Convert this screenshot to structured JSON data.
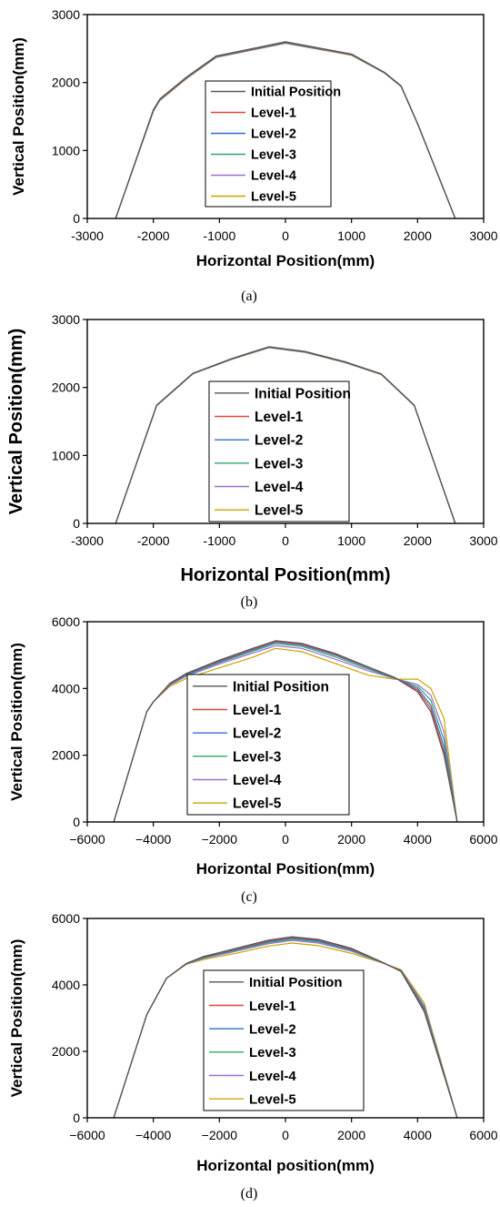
{
  "chart_data": [
    {
      "type": "line",
      "caption": "(a)",
      "xlabel": "Horizontal Position(mm)",
      "ylabel": "Vertical Position(mm)",
      "xlim": [
        -3000,
        3000
      ],
      "ylim": [
        0,
        3000
      ],
      "xticks": [
        "-3000",
        "-2000",
        "-1000",
        "0",
        "1000",
        "2000",
        "3000"
      ],
      "yticks": [
        "0",
        "1000",
        "2000",
        "3000"
      ],
      "xtick_values": [
        -3000,
        -2000,
        -1000,
        0,
        1000,
        2000,
        3000
      ],
      "ytick_values": [
        0,
        1000,
        2000,
        3000
      ],
      "legend_position": "center",
      "series": [
        {
          "name": "Initial Position",
          "color": "#555555",
          "x": [
            -2570,
            -2000,
            -1900,
            -1500,
            -1050,
            -500,
            0,
            500,
            1000,
            1500,
            1750,
            2000,
            2570
          ],
          "y": [
            0,
            1600,
            1760,
            2080,
            2390,
            2500,
            2600,
            2510,
            2420,
            2150,
            1950,
            1400,
            0
          ]
        },
        {
          "name": "Level-1",
          "color": "#e8423a",
          "x": [
            -2570,
            -2000,
            -1900,
            -1500,
            -1050,
            -500,
            0,
            500,
            1000,
            1500,
            1750,
            2000,
            2570
          ],
          "y": [
            0,
            1595,
            1755,
            2075,
            2385,
            2495,
            2595,
            2505,
            2415,
            2148,
            1948,
            1398,
            0
          ]
        },
        {
          "name": "Level-2",
          "color": "#2f6fc9",
          "x": [
            -2570,
            -2000,
            -1900,
            -1500,
            -1050,
            -500,
            0,
            500,
            1000,
            1500,
            1750,
            2000,
            2570
          ],
          "y": [
            0,
            1590,
            1750,
            2070,
            2380,
            2490,
            2590,
            2500,
            2412,
            2145,
            1946,
            1396,
            0
          ]
        },
        {
          "name": "Level-3",
          "color": "#2ea86a",
          "x": [
            -2570,
            -2000,
            -1900,
            -1500,
            -1050,
            -500,
            0,
            500,
            1000,
            1500,
            1750,
            2000,
            2570
          ],
          "y": [
            0,
            1585,
            1745,
            2065,
            2376,
            2486,
            2585,
            2496,
            2408,
            2142,
            1944,
            1394,
            0
          ]
        },
        {
          "name": "Level-4",
          "color": "#9b6fd6",
          "x": [
            -2570,
            -2000,
            -1900,
            -1500,
            -1050,
            -500,
            0,
            500,
            1000,
            1500,
            1750,
            2000,
            2570
          ],
          "y": [
            0,
            1580,
            1740,
            2060,
            2372,
            2482,
            2580,
            2492,
            2404,
            2140,
            1942,
            1392,
            0
          ]
        },
        {
          "name": "Level-5",
          "color": "#c9a400",
          "x": [
            -2570,
            -2000,
            -1900,
            -1500,
            -1050,
            -500,
            0,
            500,
            1000,
            1500,
            1750,
            2000,
            2570
          ],
          "y": [
            0,
            1575,
            1735,
            2055,
            2368,
            2478,
            2575,
            2488,
            2400,
            2138,
            1940,
            1390,
            0
          ]
        }
      ]
    },
    {
      "type": "line",
      "caption": "(b)",
      "xlabel": "Horizontal Position(mm)",
      "ylabel": "Vertical Position(mm)",
      "xlim": [
        -3000,
        3000
      ],
      "ylim": [
        0,
        3000
      ],
      "xticks": [
        "-3000",
        "-2000",
        "-1000",
        "0",
        "1000",
        "2000",
        "3000"
      ],
      "yticks": [
        "0",
        "1000",
        "2000",
        "3000"
      ],
      "xtick_values": [
        -3000,
        -2000,
        -1000,
        0,
        1000,
        2000,
        3000
      ],
      "ytick_values": [
        0,
        1000,
        2000,
        3000
      ],
      "legend_position": "center-right",
      "series": [
        {
          "name": "Initial Position",
          "color": "#555555",
          "x": [
            -2570,
            -1950,
            -1400,
            -800,
            -250,
            300,
            900,
            1450,
            1950,
            2570
          ],
          "y": [
            0,
            1740,
            2210,
            2430,
            2600,
            2530,
            2380,
            2200,
            1740,
            0
          ]
        },
        {
          "name": "Level-1",
          "color": "#e8423a",
          "x": [
            -2570,
            -1950,
            -1400,
            -800,
            -250,
            300,
            900,
            1450,
            1950,
            2570
          ],
          "y": [
            0,
            1738,
            2208,
            2428,
            2597,
            2527,
            2377,
            2198,
            1738,
            0
          ]
        },
        {
          "name": "Level-2",
          "color": "#2f6fc9",
          "x": [
            -2570,
            -1950,
            -1400,
            -800,
            -250,
            300,
            900,
            1450,
            1950,
            2570
          ],
          "y": [
            0,
            1736,
            2206,
            2425,
            2594,
            2524,
            2374,
            2196,
            1736,
            0
          ]
        },
        {
          "name": "Level-3",
          "color": "#2ea86a",
          "x": [
            -2570,
            -1950,
            -1400,
            -800,
            -250,
            300,
            900,
            1450,
            1950,
            2570
          ],
          "y": [
            0,
            1734,
            2204,
            2422,
            2591,
            2521,
            2371,
            2194,
            1734,
            0
          ]
        },
        {
          "name": "Level-4",
          "color": "#9b6fd6",
          "x": [
            -2570,
            -1950,
            -1400,
            -800,
            -250,
            300,
            900,
            1450,
            1950,
            2570
          ],
          "y": [
            0,
            1732,
            2202,
            2420,
            2588,
            2518,
            2368,
            2192,
            1732,
            0
          ]
        },
        {
          "name": "Level-5",
          "color": "#c9a400",
          "x": [
            -2570,
            -1950,
            -1400,
            -800,
            -250,
            300,
            900,
            1450,
            1950,
            2570
          ],
          "y": [
            0,
            1730,
            2200,
            2418,
            2585,
            2515,
            2365,
            2190,
            1730,
            0
          ]
        }
      ]
    },
    {
      "type": "line",
      "caption": "(c)",
      "xlabel": "Horizontal Position(mm)",
      "ylabel": "Vertical Position(mm)",
      "xlim": [
        -6000,
        6000
      ],
      "ylim": [
        0,
        6000
      ],
      "xticks": [
        "−6000",
        "−4000",
        "−2000",
        "0",
        "2000",
        "4000",
        "6000"
      ],
      "yticks": [
        "0",
        "2000",
        "4000",
        "6000"
      ],
      "xtick_values": [
        -6000,
        -4000,
        -2000,
        0,
        2000,
        4000,
        6000
      ],
      "ytick_values": [
        0,
        2000,
        4000,
        6000
      ],
      "legend_position": "center",
      "series": [
        {
          "name": "Initial Position",
          "color": "#555555",
          "x": [
            -5200,
            -4200,
            -4000,
            -3500,
            -3000,
            -2000,
            -1000,
            -300,
            500,
            1500,
            2500,
            3300,
            4000,
            4400,
            4800,
            5200
          ],
          "y": [
            0,
            3300,
            3600,
            4150,
            4450,
            4850,
            5200,
            5430,
            5350,
            5050,
            4650,
            4330,
            3900,
            3300,
            2000,
            0
          ]
        },
        {
          "name": "Level-1",
          "color": "#e8423a",
          "x": [
            -5200,
            -4200,
            -4000,
            -3500,
            -3000,
            -2000,
            -1000,
            -300,
            500,
            1500,
            2500,
            3300,
            4000,
            4400,
            4800,
            5200
          ],
          "y": [
            0,
            3300,
            3600,
            4140,
            4440,
            4830,
            5180,
            5410,
            5330,
            5030,
            4640,
            4330,
            3950,
            3400,
            2100,
            0
          ]
        },
        {
          "name": "Level-2",
          "color": "#2f6fc9",
          "x": [
            -5200,
            -4200,
            -4000,
            -3500,
            -3000,
            -2000,
            -1000,
            -300,
            500,
            1500,
            2500,
            3300,
            4000,
            4400,
            4800,
            5200
          ],
          "y": [
            0,
            3300,
            3600,
            4130,
            4420,
            4800,
            5150,
            5380,
            5300,
            5000,
            4620,
            4320,
            4000,
            3500,
            2250,
            0
          ]
        },
        {
          "name": "Level-3",
          "color": "#2ea86a",
          "x": [
            -5200,
            -4200,
            -4000,
            -3500,
            -3000,
            -2000,
            -1000,
            -300,
            500,
            1500,
            2500,
            3300,
            4000,
            4400,
            4800,
            5200
          ],
          "y": [
            0,
            3300,
            3600,
            4120,
            4400,
            4770,
            5110,
            5340,
            5260,
            4950,
            4580,
            4310,
            4060,
            3650,
            2450,
            0
          ]
        },
        {
          "name": "Level-4",
          "color": "#9b6fd6",
          "x": [
            -5200,
            -4200,
            -4000,
            -3500,
            -3000,
            -2000,
            -1000,
            -300,
            500,
            1500,
            2500,
            3300,
            4000,
            4400,
            4800,
            5200
          ],
          "y": [
            0,
            3300,
            3600,
            4100,
            4370,
            4730,
            5060,
            5280,
            5200,
            4880,
            4530,
            4300,
            4120,
            3800,
            2700,
            0
          ]
        },
        {
          "name": "Level-5",
          "color": "#c9a400",
          "x": [
            -5200,
            -4200,
            -4000,
            -3500,
            -3000,
            -2000,
            -1000,
            -300,
            500,
            1500,
            2500,
            3300,
            4000,
            4400,
            4800,
            5200
          ],
          "y": [
            0,
            3300,
            3600,
            4060,
            4300,
            4620,
            4930,
            5200,
            5100,
            4750,
            4400,
            4280,
            4280,
            4000,
            3100,
            0
          ]
        }
      ]
    },
    {
      "type": "line",
      "caption": "(d)",
      "xlabel": "Horizontal position(mm)",
      "ylabel": "Vertical Position(mm)",
      "xlim": [
        -6000,
        6000
      ],
      "ylim": [
        0,
        6000
      ],
      "xticks": [
        "−6000",
        "−4000",
        "−2000",
        "0",
        "2000",
        "4000",
        "6000"
      ],
      "yticks": [
        "0",
        "2000",
        "4000",
        "6000"
      ],
      "xtick_values": [
        -6000,
        -4000,
        -2000,
        0,
        2000,
        4000,
        6000
      ],
      "ytick_values": [
        0,
        2000,
        4000,
        6000
      ],
      "legend_position": "center-right",
      "series": [
        {
          "name": "Initial Position",
          "color": "#555555",
          "x": [
            -5200,
            -4200,
            -3600,
            -3000,
            -2500,
            -1500,
            -500,
            200,
            1000,
            2000,
            2900,
            3500,
            4200,
            5200
          ],
          "y": [
            0,
            3100,
            4200,
            4650,
            4850,
            5100,
            5350,
            5450,
            5370,
            5100,
            4700,
            4400,
            3200,
            0
          ]
        },
        {
          "name": "Level-1",
          "color": "#e8423a",
          "x": [
            -5200,
            -4200,
            -3600,
            -3000,
            -2500,
            -1500,
            -500,
            200,
            1000,
            2000,
            2900,
            3500,
            4200,
            5200
          ],
          "y": [
            0,
            3100,
            4200,
            4645,
            4840,
            5085,
            5330,
            5430,
            5350,
            5085,
            4695,
            4410,
            3230,
            0
          ]
        },
        {
          "name": "Level-2",
          "color": "#2f6fc9",
          "x": [
            -5200,
            -4200,
            -3600,
            -3000,
            -2500,
            -1500,
            -500,
            200,
            1000,
            2000,
            2900,
            3500,
            4200,
            5200
          ],
          "y": [
            0,
            3100,
            4200,
            4640,
            4825,
            5065,
            5305,
            5405,
            5325,
            5065,
            4690,
            4420,
            3270,
            0
          ]
        },
        {
          "name": "Level-3",
          "color": "#2ea86a",
          "x": [
            -5200,
            -4200,
            -3600,
            -3000,
            -2500,
            -1500,
            -500,
            200,
            1000,
            2000,
            2900,
            3500,
            4200,
            5200
          ],
          "y": [
            0,
            3100,
            4200,
            4635,
            4810,
            5040,
            5275,
            5375,
            5295,
            5040,
            4685,
            4430,
            3320,
            0
          ]
        },
        {
          "name": "Level-4",
          "color": "#9b6fd6",
          "x": [
            -5200,
            -4200,
            -3600,
            -3000,
            -2500,
            -1500,
            -500,
            200,
            1000,
            2000,
            2900,
            3500,
            4200,
            5200
          ],
          "y": [
            0,
            3100,
            4200,
            4630,
            4795,
            5010,
            5240,
            5340,
            5260,
            5010,
            4680,
            4440,
            3380,
            0
          ]
        },
        {
          "name": "Level-5",
          "color": "#c9a400",
          "x": [
            -5200,
            -4200,
            -3600,
            -3000,
            -2500,
            -1500,
            -500,
            200,
            1000,
            2000,
            2900,
            3500,
            4200,
            5200
          ],
          "y": [
            0,
            3100,
            4200,
            4620,
            4760,
            4950,
            5170,
            5260,
            5180,
            4950,
            4670,
            4460,
            3460,
            0
          ]
        }
      ]
    }
  ]
}
